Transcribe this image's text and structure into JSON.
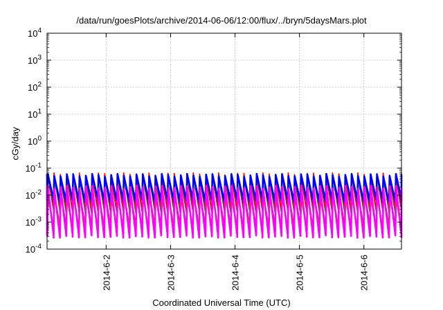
{
  "chart_data": {
    "type": "line",
    "title": "/data/run/goesPlots/archive/2014-06-06/12:00/flux/../bryn/5daysMars.plot",
    "xlabel": "Coordinated Universal Time (UTC)",
    "ylabel": "cGy/day",
    "y_scale": "log",
    "ylim": [
      0.0001,
      10000
    ],
    "y_tick_base": "10",
    "y_tick_exponents": [
      "-4",
      "-3",
      "-2",
      "-1",
      "0",
      "1",
      "2",
      "3",
      "4"
    ],
    "xlim": [
      "2014-06-01T02:00",
      "2014-06-06T14:00"
    ],
    "x_tick_labels": [
      "2014-6-2",
      "2014-6-3",
      "2014-6-4",
      "2014-6-5",
      "2014-6-6"
    ],
    "x_tick_dates": [
      "2014-06-02T00:00",
      "2014-06-03T00:00",
      "2014-06-04T00:00",
      "2014-06-05T00:00",
      "2014-06-06T00:00"
    ],
    "grid": true,
    "pattern": "sawtooth, about 56 cycles over the shown interval, each cycle a sharp rise followed by a slow decay",
    "series": [
      {
        "color": "#ff0000",
        "peak": 0.06,
        "trough": 0.0035
      },
      {
        "color": "#008b00",
        "peak": 0.05,
        "trough": 0.0025
      },
      {
        "color": "#0000ff",
        "peak": 0.055,
        "trough": 0.006
      },
      {
        "color": "#ff00ff",
        "peak": 0.02,
        "trough": 0.0003
      },
      {
        "color": "#00cccc",
        "peak": 0.025,
        "trough": 0.008
      },
      {
        "color": "#a52a2a",
        "peak": 0.012,
        "trough": 0.0006
      },
      {
        "color": "#ff4500",
        "peak": 0.008,
        "trough": 0.0005
      }
    ]
  }
}
